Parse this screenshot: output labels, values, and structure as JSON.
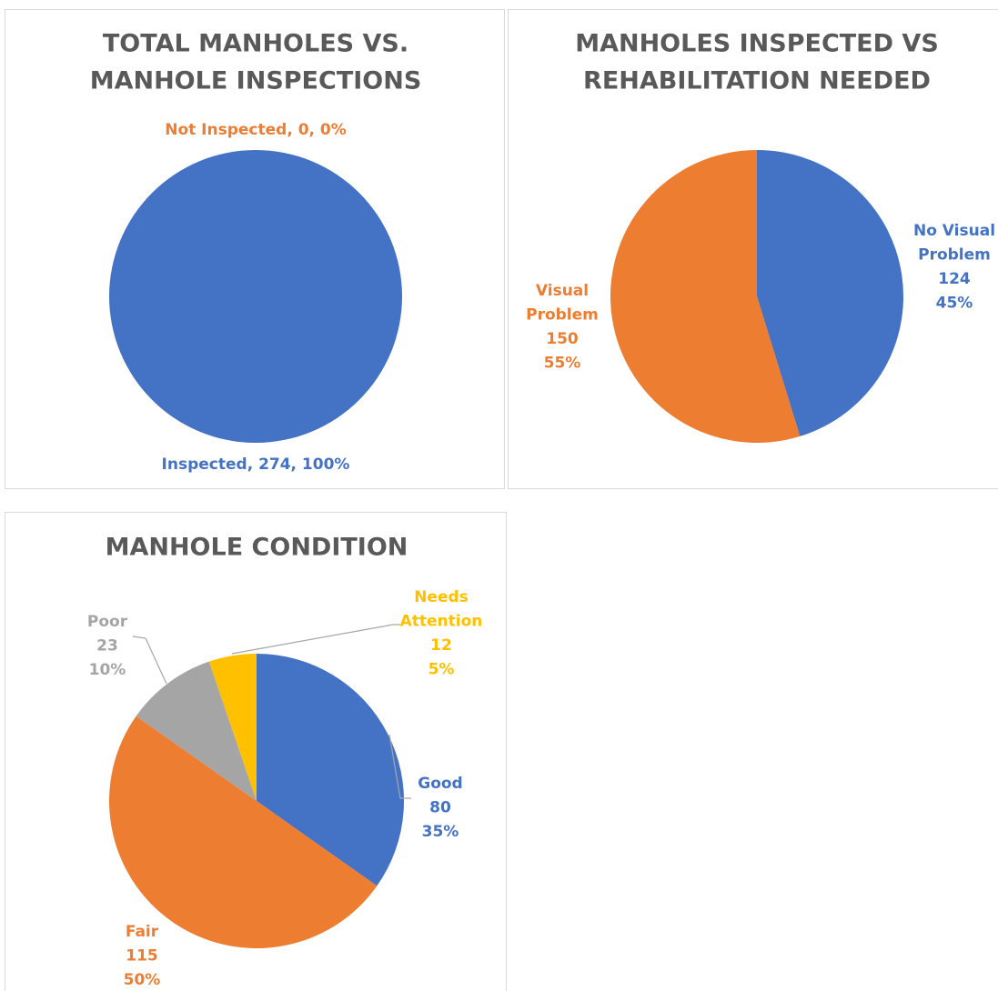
{
  "chart_data": [
    {
      "type": "pie",
      "title": [
        "TOTAL MANHOLES VS.",
        "MANHOLE INSPECTIONS"
      ],
      "values": [
        274,
        0
      ],
      "labels": [
        [
          "Inspected, 274, 100%"
        ],
        [
          "Not Inspected, 0, 0%"
        ]
      ],
      "colors": [
        "#4472c4",
        "#ed7d31"
      ]
    },
    {
      "type": "pie",
      "title": [
        "MANHOLES INSPECTED VS",
        "REHABILITATION NEEDED"
      ],
      "values": [
        124,
        150
      ],
      "labels": [
        [
          "No Visual",
          "Problem",
          "124",
          "45%"
        ],
        [
          "Visual",
          "Problem",
          "150",
          "55%"
        ]
      ],
      "colors": [
        "#4472c4",
        "#ed7d31"
      ]
    },
    {
      "type": "pie",
      "title": [
        "MANHOLE CONDITION"
      ],
      "values": [
        80,
        115,
        23,
        12
      ],
      "labels": [
        [
          "Good",
          "80",
          "35%"
        ],
        [
          "Fair",
          "115",
          "50%"
        ],
        [
          "Poor",
          "23",
          "10%"
        ],
        [
          "Needs",
          "Attention",
          "12",
          "5%"
        ]
      ],
      "colors": [
        "#4472c4",
        "#ed7d31",
        "#a5a5a5",
        "#ffc000"
      ]
    }
  ]
}
